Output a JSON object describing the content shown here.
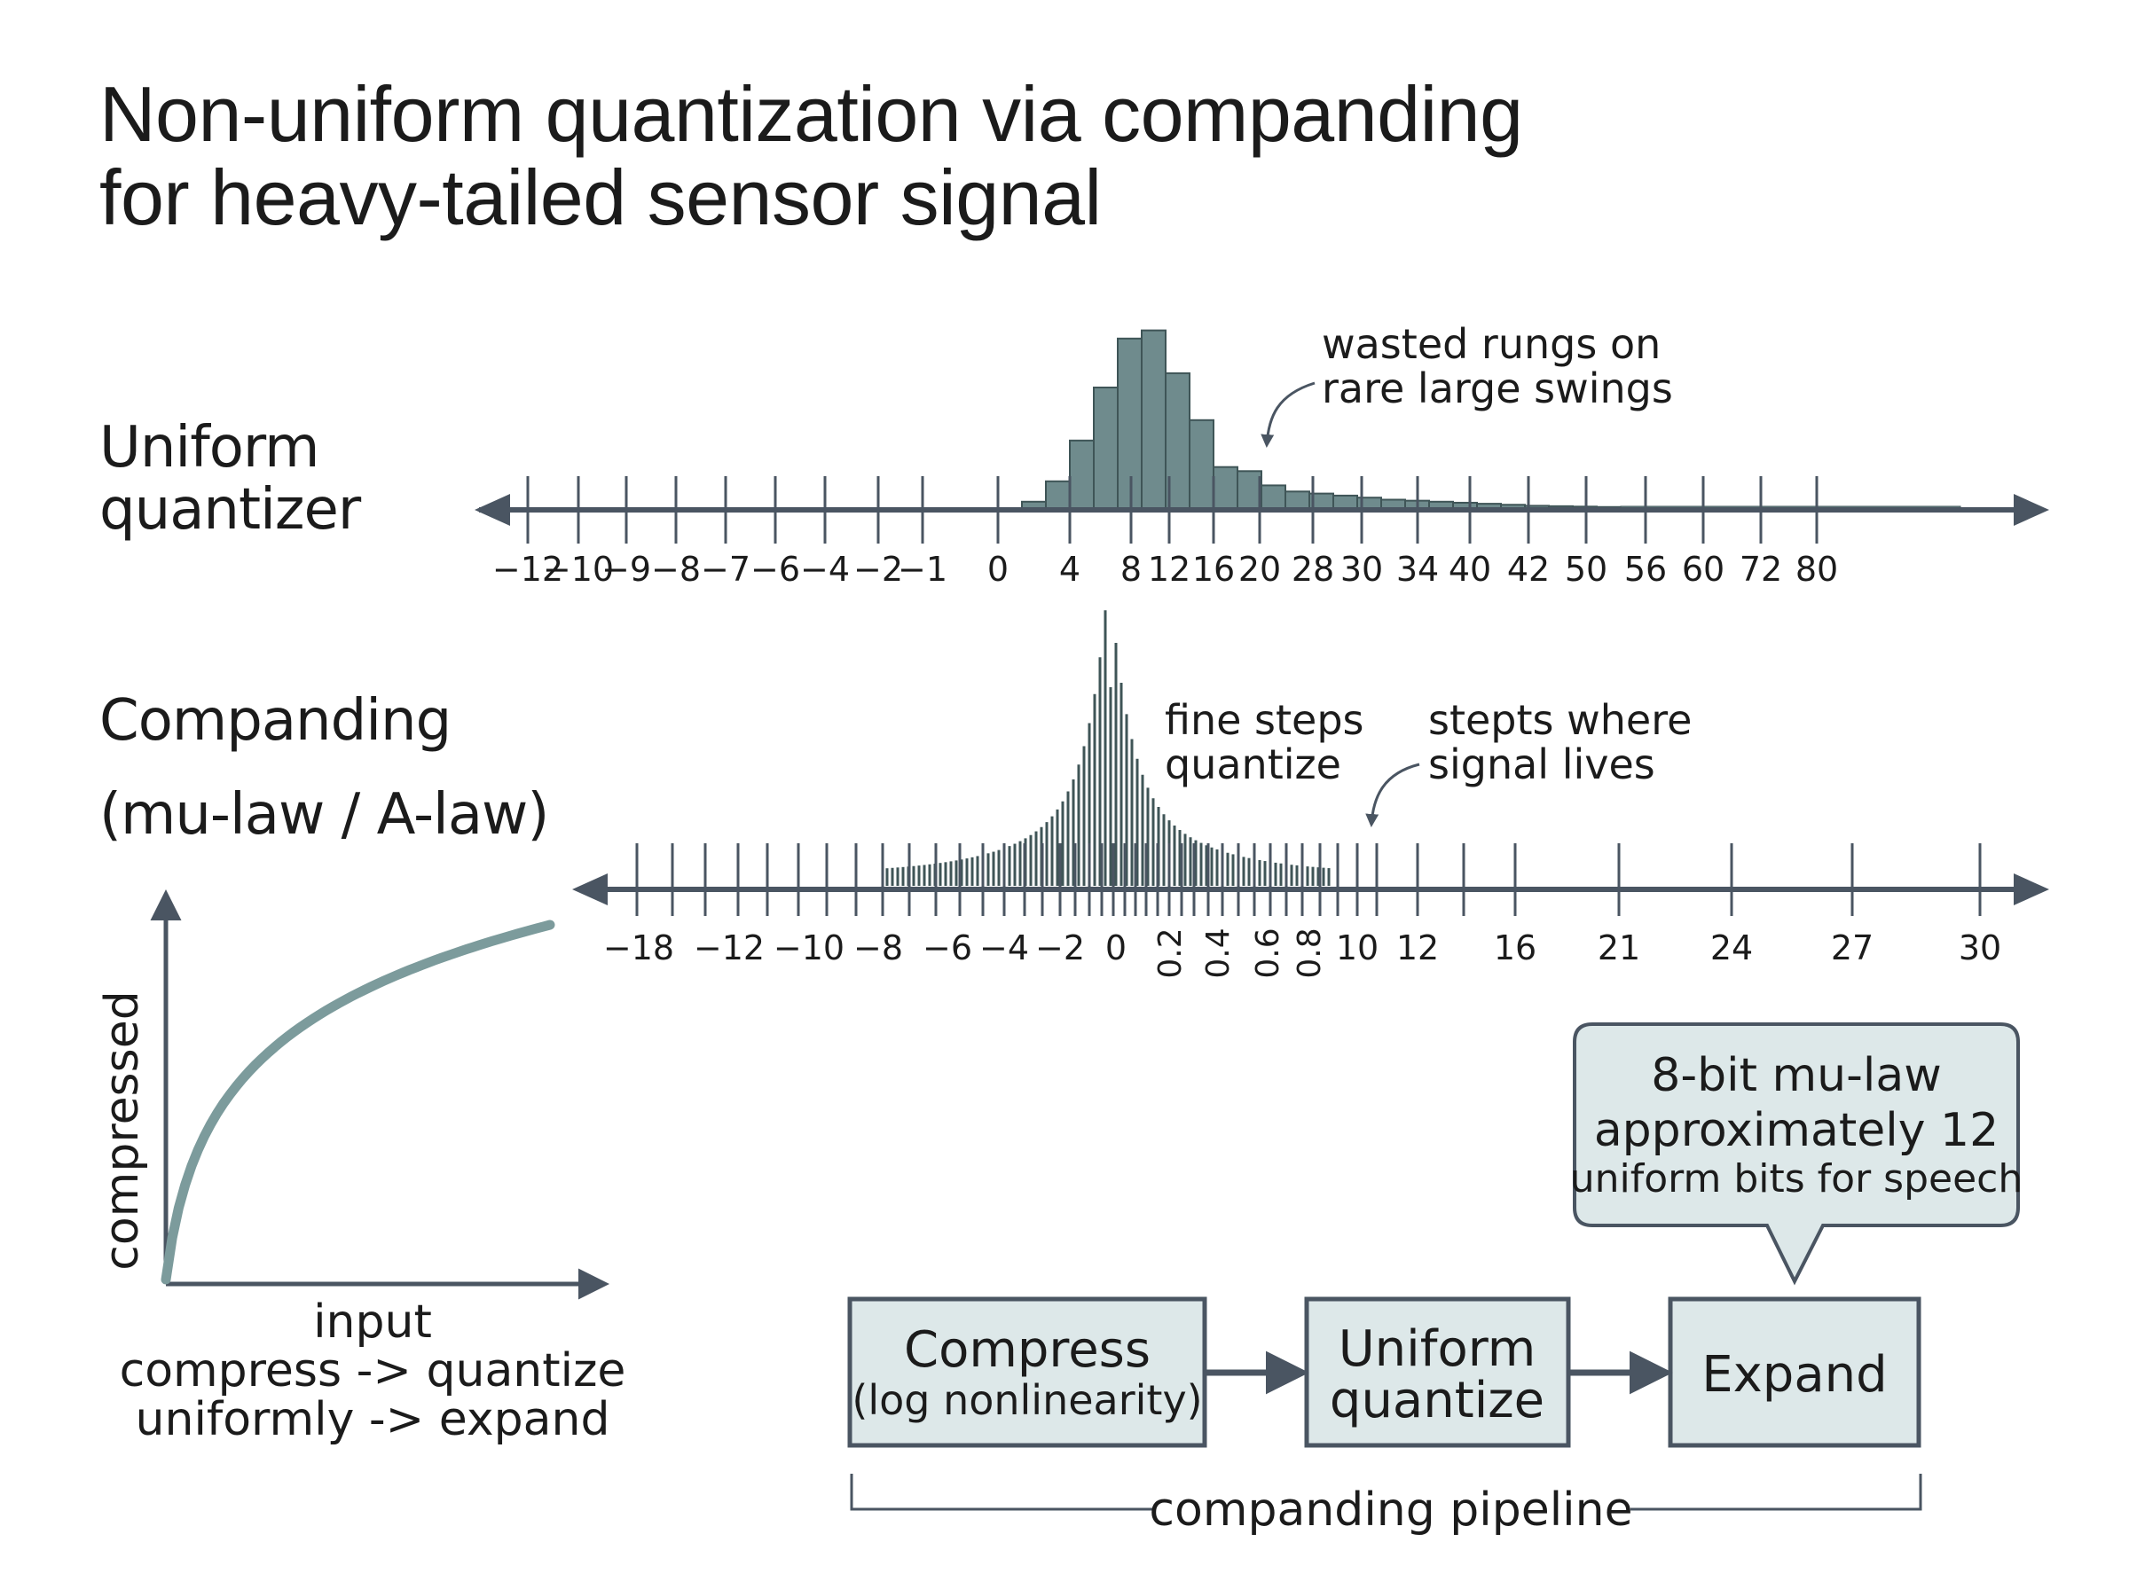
{
  "title": {
    "line1": "Non-uniform quantization via companding",
    "line2": "for heavy-tailed sensor signal"
  },
  "uniform_section": {
    "label_line1": "Uniform",
    "label_line2": "quantizer",
    "annotation_line1": "wasted rungs on",
    "annotation_line2": "rare large swings",
    "tick_labels": [
      "−12",
      "−10",
      "−9",
      "−8",
      "−7",
      "−6",
      "−4",
      "−2",
      "−1",
      "0",
      "4",
      "8",
      "12",
      "16",
      "20",
      "28",
      "30",
      "34",
      "40",
      "42",
      "50",
      "56",
      "60",
      "72",
      "80"
    ],
    "histogram_heights": [
      0.04,
      0.14,
      0.34,
      0.6,
      0.84,
      0.88,
      0.67,
      0.44,
      0.21,
      0.19,
      0.12,
      0.09,
      0.08,
      0.07,
      0.06,
      0.05,
      0.045,
      0.04,
      0.035,
      0.03,
      0.025,
      0.02,
      0.018,
      0.016,
      0.014
    ]
  },
  "companding_section": {
    "label_line1": "Companding",
    "label_line2": "(mu-law / A-law)",
    "annotation_fine_line1": "fine steps",
    "annotation_fine_line2": "quantize",
    "annotation_signal_line1": "stepts where",
    "annotation_signal_line2": "signal lives",
    "tick_labels": [
      {
        "text": "−18",
        "rotated": false
      },
      {
        "text": "−12",
        "rotated": false
      },
      {
        "text": "−10",
        "rotated": false
      },
      {
        "text": "−8",
        "rotated": false
      },
      {
        "text": "−6",
        "rotated": false
      },
      {
        "text": "−4",
        "rotated": false
      },
      {
        "text": "−2",
        "rotated": false
      },
      {
        "text": "0",
        "rotated": false
      },
      {
        "text": "0.2",
        "rotated": true
      },
      {
        "text": "0.4",
        "rotated": true
      },
      {
        "text": "0.6",
        "rotated": true
      },
      {
        "text": "0.8",
        "rotated": true
      },
      {
        "text": "10",
        "rotated": false
      },
      {
        "text": "12",
        "rotated": false
      },
      {
        "text": "16",
        "rotated": false
      },
      {
        "text": "21",
        "rotated": false
      },
      {
        "text": "24",
        "rotated": false
      },
      {
        "text": "27",
        "rotated": false
      },
      {
        "text": "30",
        "rotated": false
      }
    ]
  },
  "curve_plot": {
    "y_label": "compressed",
    "x_label": "input",
    "caption_line1": "compress -> quantize",
    "caption_line2": "uniformly -> expand"
  },
  "pipeline": {
    "steps": [
      {
        "line1": "Compress",
        "line2": "(log nonlinearity)"
      },
      {
        "line1": "Uniform",
        "line2": "quantize"
      },
      {
        "line1": "Expand",
        "line2": ""
      }
    ],
    "bracket_label": "companding pipeline",
    "callout_line1": "8-bit mu-law",
    "callout_line2": "approximately 12",
    "callout_line3": "uniform bits for speech"
  },
  "colors": {
    "axis": "#4a5562",
    "bar_fill": "#6f8b8d",
    "bar_stroke": "#3f5557",
    "curve": "#7c9b9c",
    "box_fill": "#dde8e9",
    "box_stroke": "#4a5562",
    "text": "#1b1b1b"
  }
}
